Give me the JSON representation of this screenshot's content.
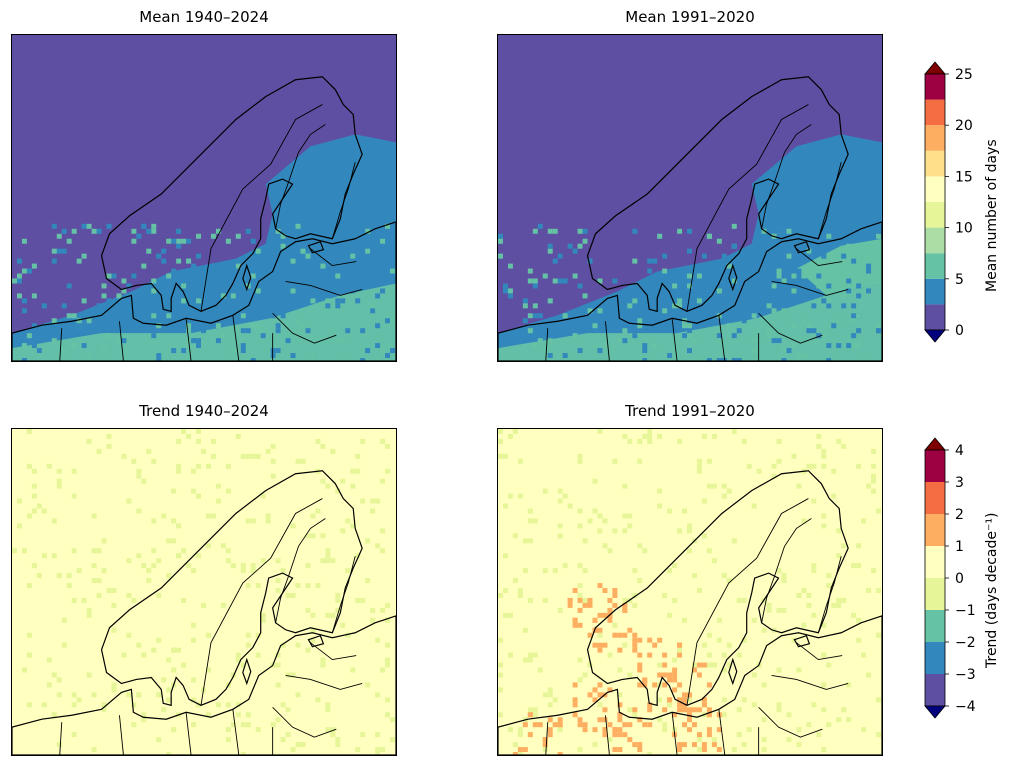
{
  "panels": [
    {
      "title": "Mean 1940–2024",
      "field": "mean",
      "variant": 0
    },
    {
      "title": "Mean 1991–2020",
      "field": "mean",
      "variant": 1
    },
    {
      "title": "Trend 1940–2024",
      "field": "trend",
      "variant": 0
    },
    {
      "title": "Trend 1991–2020",
      "field": "trend",
      "variant": 1
    }
  ],
  "colorbars": [
    {
      "label": "Mean number of days",
      "ticks": [
        "0",
        "5",
        "10",
        "15",
        "20",
        "25"
      ],
      "colors": [
        "#5e4fa2",
        "#3288bd",
        "#66c2a5",
        "#abdda4",
        "#e6f598",
        "#ffffbf",
        "#fee08b",
        "#fdae61",
        "#f46d43",
        "#9e0142"
      ],
      "under_color": "#00007f",
      "over_color": "#7f0000"
    },
    {
      "label": "Trend (days decade⁻¹)",
      "ticks": [
        "−4",
        "−3",
        "−2",
        "−1",
        "0",
        "1",
        "2",
        "3",
        "4"
      ],
      "colors": [
        "#5e4fa2",
        "#3288bd",
        "#66c2a5",
        "#e6f598",
        "#ffffbf",
        "#fdae61",
        "#f46d43",
        "#9e0142"
      ],
      "under_color": "#00007f",
      "over_color": "#7f0000"
    }
  ]
}
